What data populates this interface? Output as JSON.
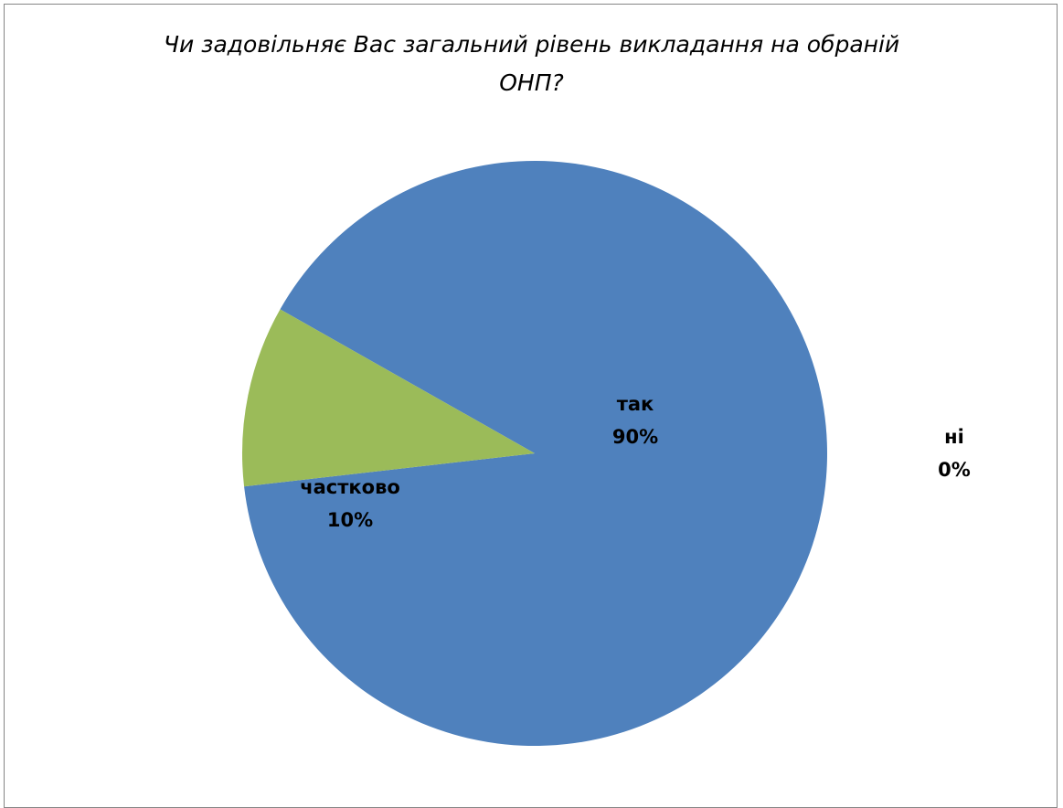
{
  "chart_data": {
    "type": "pie",
    "title": "Чи задовільняє Вас загальний рівень викладання на обраній ОНП?",
    "title_lines": [
      "Чи задовільняє Вас загальний рівень викладання на обраній",
      "ОНП?"
    ],
    "categories": [
      "так",
      "ні",
      "частково"
    ],
    "values": [
      90,
      0,
      10
    ],
    "percent_labels": [
      "90%",
      "0%",
      "10%"
    ],
    "colors": [
      "#4F81BD",
      "#C0504D",
      "#9BBB59"
    ],
    "legend": "none",
    "data_labels": true
  }
}
